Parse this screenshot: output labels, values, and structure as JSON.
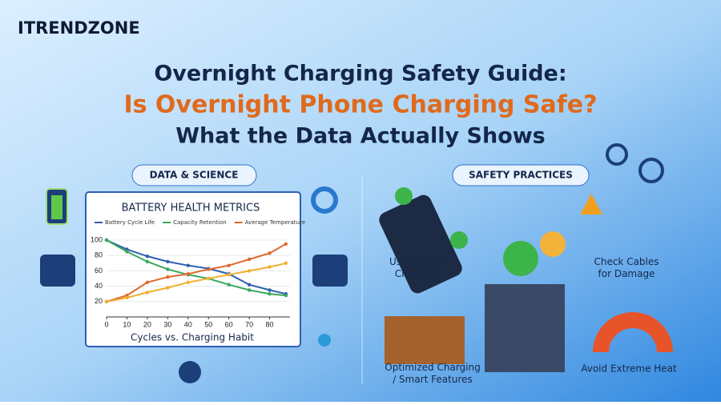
{
  "brand": "ITRENDZONE",
  "title": {
    "line1": "Overnight Charging Safety Guide:",
    "line2": "Is Overnight Phone Charging Safe?",
    "line3": "What the Data Actually Shows"
  },
  "sections": {
    "left": "DATA & SCIENCE",
    "right": "SAFETY PRACTICES"
  },
  "practices": [
    "Use Official Chargers",
    "Check Cables for Damage",
    "Optimized Charging / Smart Features",
    "Avoid Extreme Heat"
  ],
  "chart_data": {
    "type": "line",
    "title": "BATTERY HEALTH METRICS",
    "x_label": "Cycles vs. Charging Habit",
    "x": [
      0,
      10,
      20,
      30,
      40,
      50,
      60,
      70,
      80,
      88
    ],
    "xlim": [
      0,
      90
    ],
    "xticks": [
      0,
      10,
      20,
      30,
      40,
      50,
      60,
      70,
      80
    ],
    "ylim": [
      0,
      105
    ],
    "yticks": [
      20,
      40,
      60,
      80,
      100
    ],
    "series": [
      {
        "name": "Battery Cycle Life",
        "color": "#2f5fb0",
        "values": [
          100,
          88,
          79,
          72,
          67,
          63,
          56,
          42,
          35,
          30
        ]
      },
      {
        "name": "Capacity Retention",
        "color": "#3aa85a",
        "values": [
          100,
          85,
          72,
          62,
          55,
          50,
          42,
          35,
          30,
          28
        ]
      },
      {
        "name": "Average Temperature",
        "color": "#e0692c",
        "values": [
          20,
          28,
          45,
          52,
          56,
          62,
          67,
          75,
          83,
          95
        ]
      },
      {
        "color": "#f0b030",
        "values": [
          20,
          25,
          32,
          38,
          45,
          50,
          55,
          60,
          65,
          70
        ]
      }
    ]
  }
}
